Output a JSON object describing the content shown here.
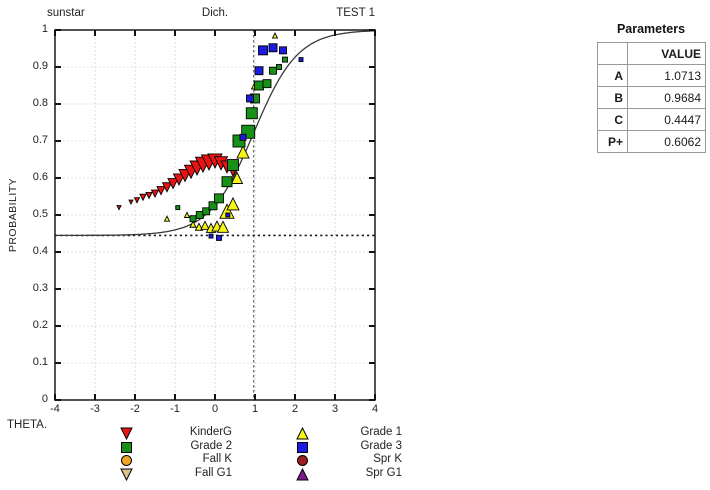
{
  "header": {
    "left": "sunstar",
    "center": "Dich.",
    "right": "TEST 1"
  },
  "axes": {
    "y_label": "PROBABILITY",
    "x_label": "THETA.",
    "x_tick_labels": [
      "-4",
      "-3",
      "-2",
      "-1",
      "0",
      "1",
      "2",
      "3",
      "4"
    ],
    "y_tick_labels": [
      "0",
      "0.1",
      "0.2",
      "0.3",
      "0.4",
      "0.5",
      "0.6",
      "0.7",
      "0.8",
      "0.9",
      "1"
    ]
  },
  "parameters_table": {
    "title": "Parameters",
    "value_header": "VALUE",
    "rows": [
      {
        "name": "A",
        "value": "1.0713"
      },
      {
        "name": "B",
        "value": "0.9684"
      },
      {
        "name": "C",
        "value": "0.4447"
      },
      {
        "name": "P+",
        "value": "0.6062"
      }
    ]
  },
  "legend": {
    "left_column": [
      "KinderG",
      "Grade 2",
      "Fall K",
      "Fall G1"
    ],
    "right_column": [
      "Grade 1",
      "Grade 3",
      "Spr K",
      "Spr G1"
    ]
  },
  "chart_data": {
    "type": "scatter",
    "title": "Item characteristic curve (3PL) with empirical group proportions",
    "xlabel": "THETA.",
    "ylabel": "PROBABILITY",
    "x_range": [
      -4,
      4
    ],
    "y_range": [
      0,
      1
    ],
    "x_ticks": [
      -4,
      -3,
      -2,
      -1,
      0,
      1,
      2,
      3,
      4
    ],
    "y_ticks": [
      0,
      0.1,
      0.2,
      0.3,
      0.4,
      0.5,
      0.6,
      0.7,
      0.8,
      0.9,
      1
    ],
    "grid": true,
    "curve": {
      "model": "3PL",
      "A": 1.0713,
      "B": 0.9684,
      "C": 0.4447,
      "D": 1.7,
      "color": "#3a3a3a"
    },
    "guides": {
      "vertical_dashed_at_theta": 0.9684,
      "horizontal_dotted_at_p": 0.4447
    },
    "series": [
      {
        "name": "KinderG",
        "shape": "triangle-down",
        "color": "#e81414",
        "points": [
          [
            -2.4,
            0.52,
            4
          ],
          [
            -2.1,
            0.535,
            4
          ],
          [
            -1.95,
            0.54,
            5
          ],
          [
            -1.8,
            0.548,
            6
          ],
          [
            -1.65,
            0.553,
            6
          ],
          [
            -1.5,
            0.558,
            7
          ],
          [
            -1.35,
            0.566,
            8
          ],
          [
            -1.2,
            0.575,
            9
          ],
          [
            -1.05,
            0.585,
            10
          ],
          [
            -0.9,
            0.596,
            11
          ],
          [
            -0.75,
            0.607,
            12
          ],
          [
            -0.6,
            0.617,
            13
          ],
          [
            -0.45,
            0.627,
            14
          ],
          [
            -0.3,
            0.636,
            15
          ],
          [
            -0.15,
            0.642,
            15
          ],
          [
            0.0,
            0.646,
            14
          ],
          [
            0.15,
            0.64,
            13
          ],
          [
            0.3,
            0.63,
            12
          ],
          [
            0.45,
            0.62,
            11
          ]
        ]
      },
      {
        "name": "Grade 1",
        "shape": "triangle-up",
        "color": "#f6f616",
        "points": [
          [
            -1.2,
            0.49,
            5
          ],
          [
            -0.7,
            0.5,
            5
          ],
          [
            -0.55,
            0.475,
            6
          ],
          [
            -0.4,
            0.468,
            7
          ],
          [
            -0.25,
            0.472,
            8
          ],
          [
            -0.1,
            0.465,
            9
          ],
          [
            0.05,
            0.47,
            10
          ],
          [
            0.2,
            0.468,
            11
          ],
          [
            0.3,
            0.51,
            14
          ],
          [
            0.45,
            0.53,
            12
          ],
          [
            0.55,
            0.6,
            11
          ],
          [
            0.7,
            0.67,
            12
          ],
          [
            0.78,
            0.73,
            8
          ],
          [
            1.0,
            0.85,
            7
          ],
          [
            1.5,
            0.985,
            5
          ]
        ]
      },
      {
        "name": "Grade 2",
        "shape": "square",
        "color": "#169016",
        "points": [
          [
            -0.93,
            0.52,
            4
          ],
          [
            -0.55,
            0.49,
            6
          ],
          [
            -0.38,
            0.5,
            7
          ],
          [
            -0.22,
            0.51,
            7
          ],
          [
            -0.05,
            0.525,
            8
          ],
          [
            0.1,
            0.545,
            9
          ],
          [
            0.3,
            0.59,
            10
          ],
          [
            0.45,
            0.635,
            11
          ],
          [
            0.6,
            0.7,
            12
          ],
          [
            0.83,
            0.725,
            13
          ],
          [
            0.92,
            0.775,
            11
          ],
          [
            1.0,
            0.815,
            9
          ],
          [
            1.1,
            0.85,
            9
          ],
          [
            1.3,
            0.855,
            8
          ],
          [
            1.45,
            0.89,
            7
          ],
          [
            1.6,
            0.9,
            5
          ],
          [
            1.75,
            0.92,
            5
          ]
        ]
      },
      {
        "name": "Grade 3",
        "shape": "square",
        "color": "#1c1ce0",
        "points": [
          [
            -0.1,
            0.443,
            4
          ],
          [
            0.1,
            0.438,
            5
          ],
          [
            0.32,
            0.5,
            4
          ],
          [
            0.7,
            0.71,
            6
          ],
          [
            0.875,
            0.815,
            7
          ],
          [
            1.1,
            0.89,
            8
          ],
          [
            1.2,
            0.945,
            9
          ],
          [
            1.45,
            0.952,
            8
          ],
          [
            1.7,
            0.945,
            7
          ],
          [
            2.15,
            0.92,
            4
          ]
        ]
      },
      {
        "name": "Fall K",
        "shape": "circle",
        "color": "#f0a525",
        "points": []
      },
      {
        "name": "Fall G1",
        "shape": "triangle-down",
        "color": "#d9c08f",
        "points": []
      },
      {
        "name": "Spr K",
        "shape": "circle",
        "color": "#9c1f1f",
        "points": []
      },
      {
        "name": "Spr G1",
        "shape": "triangle-up",
        "color": "#7d1d90",
        "points": []
      }
    ]
  }
}
